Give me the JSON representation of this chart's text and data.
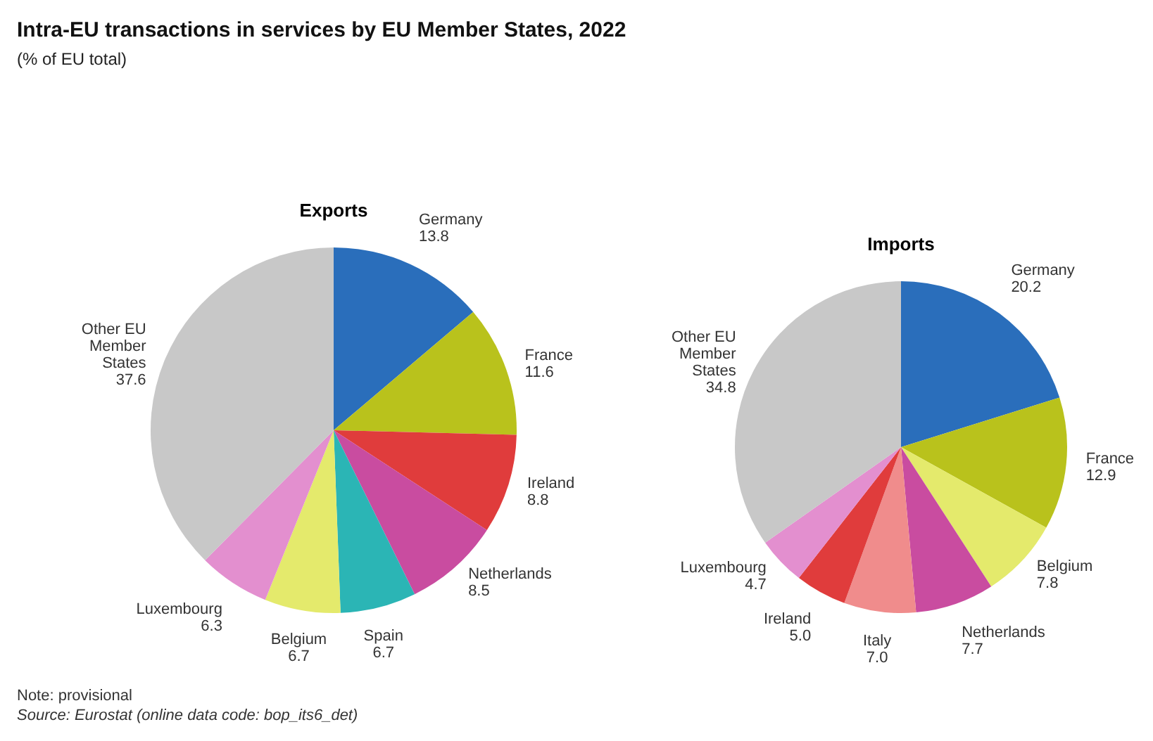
{
  "chart_data": [
    {
      "type": "pie",
      "title": "Intra-EU transactions in services by EU Member States, 2022",
      "subtitle": "(% of EU total)",
      "annotations": [
        "Note: provisional",
        "Source: Eurostat (online data code: bop_its6_det)"
      ],
      "data_labels": true,
      "categories": [
        "Germany",
        "France",
        "Ireland",
        "Netherlands",
        "Spain",
        "Belgium",
        "Luxembourg",
        "Other EU Member States"
      ],
      "values": [
        13.8,
        11.6,
        8.8,
        8.5,
        6.7,
        6.7,
        6.3,
        37.6
      ],
      "colors": [
        "#2a6ebb",
        "#b9c21c",
        "#e03c3c",
        "#c94ca0",
        "#2bb5b5",
        "#e4ea6c",
        "#e38fcf",
        "#c8c8c8"
      ],
      "xlabel": "Exports"
    },
    {
      "type": "pie",
      "value_labels": [
        "20.2",
        "12.9",
        "7.8",
        "7.7",
        "7.0",
        "5.0",
        "4.7",
        "34.8"
      ],
      "categories": [
        "Germany",
        "France",
        "Belgium",
        "Netherlands",
        "Italy",
        "Ireland",
        "Luxembourg",
        "Other EU Member States"
      ],
      "values": [
        20.2,
        12.9,
        7.8,
        7.7,
        7.0,
        5.0,
        4.7,
        34.8
      ],
      "colors": [
        "#2a6ebb",
        "#b9c21c",
        "#e4ea6c",
        "#c94ca0",
        "#f08c8c",
        "#e03c3c",
        "#e38fcf",
        "#c8c8c8"
      ],
      "xlabel": "Imports"
    }
  ]
}
